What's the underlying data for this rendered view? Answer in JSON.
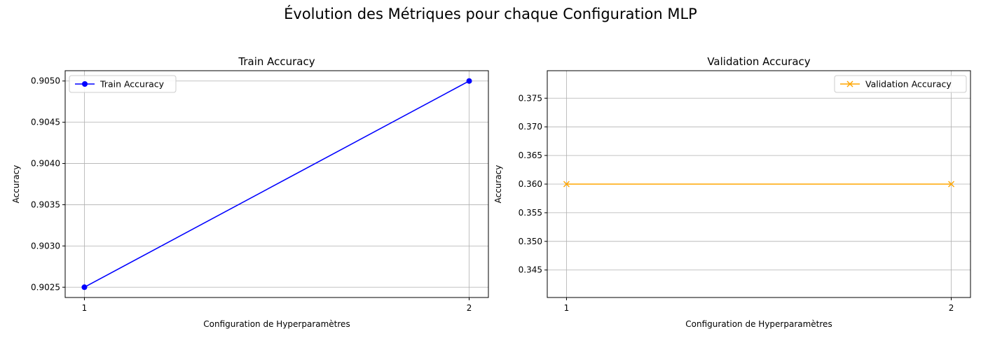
{
  "figure": {
    "suptitle": "Évolution des Métriques pour chaque Configuration MLP"
  },
  "chart_data": [
    {
      "type": "line",
      "title": "Train Accuracy",
      "xlabel": "Configuration de Hyperparamètres",
      "ylabel": "Accuracy",
      "x": [
        1,
        2
      ],
      "series": [
        {
          "name": "Train Accuracy",
          "values": [
            0.9025,
            0.905
          ],
          "color": "#0000ff",
          "marker": "circle"
        }
      ],
      "xticks": [
        1,
        2
      ],
      "yticks": [
        0.9025,
        0.903,
        0.9035,
        0.904,
        0.9045,
        0.905
      ],
      "ytick_labels": [
        "0.9025",
        "0.9030",
        "0.9035",
        "0.9040",
        "0.9045",
        "0.9050"
      ],
      "xlim": [
        0.95,
        2.05
      ],
      "ylim": [
        0.902375,
        0.905125
      ],
      "grid": true,
      "legend_position": "upper left"
    },
    {
      "type": "line",
      "title": "Validation Accuracy",
      "xlabel": "Configuration de Hyperparamètres",
      "ylabel": "Accuracy",
      "x": [
        1,
        2
      ],
      "series": [
        {
          "name": "Validation Accuracy",
          "values": [
            0.36,
            0.36
          ],
          "color": "#ffa500",
          "marker": "x"
        }
      ],
      "xticks": [
        1,
        2
      ],
      "yticks": [
        0.345,
        0.35,
        0.355,
        0.36,
        0.365,
        0.37,
        0.375
      ],
      "ytick_labels": [
        "0.345",
        "0.350",
        "0.355",
        "0.360",
        "0.365",
        "0.370",
        "0.375"
      ],
      "xlim": [
        0.95,
        2.05
      ],
      "ylim": [
        0.3402,
        0.3798
      ],
      "grid": true,
      "legend_position": "upper right"
    }
  ]
}
